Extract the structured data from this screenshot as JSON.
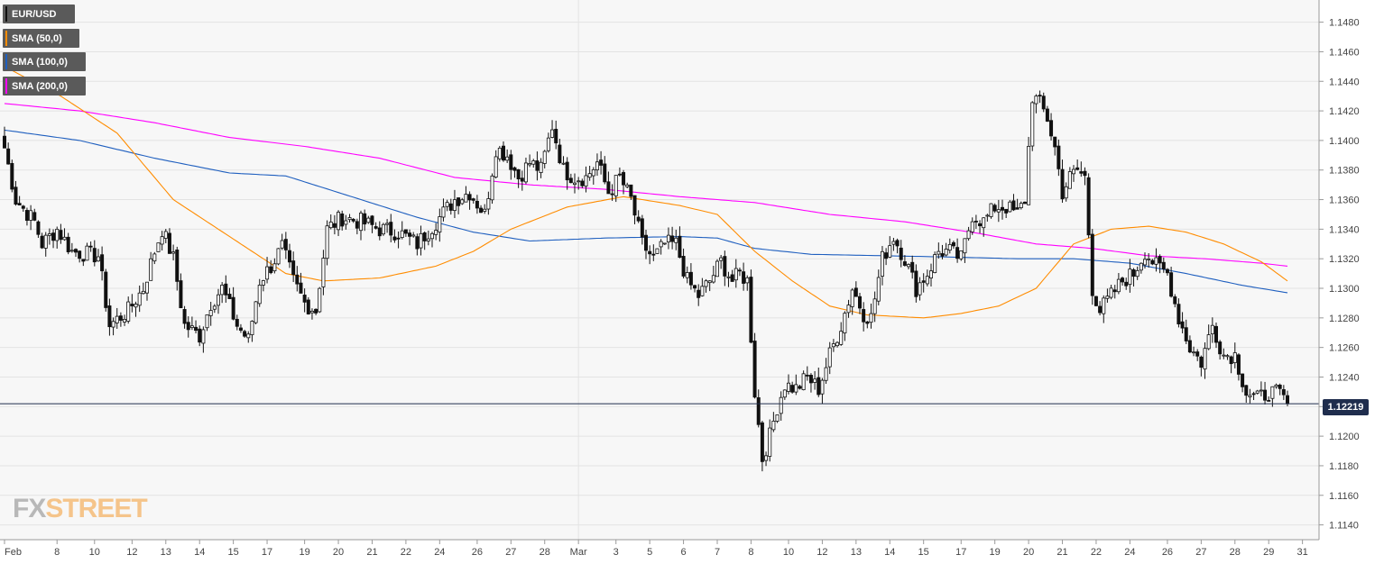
{
  "legend": [
    {
      "label": "EUR/USD",
      "color": "#111111"
    },
    {
      "label": "SMA (50,0)",
      "color": "#ff8c00"
    },
    {
      "label": "SMA (100,0)",
      "color": "#1f5fbf"
    },
    {
      "label": "SMA (200,0)",
      "color": "#ff00ff"
    }
  ],
  "price_tag": "1.12219",
  "logo": {
    "part1": "FX",
    "part2": "STREET"
  },
  "chart_data": {
    "type": "candlestick",
    "title": "",
    "ylim": [
      1.113,
      1.1495
    ],
    "grid": true,
    "y_ticks": [
      "1.1480",
      "1.1460",
      "1.1440",
      "1.1420",
      "1.1400",
      "1.1380",
      "1.1360",
      "1.1340",
      "1.1320",
      "1.1300",
      "1.1280",
      "1.1260",
      "1.1240",
      "1.1220",
      "1.1200",
      "1.1180",
      "1.1160",
      "1.1140"
    ],
    "x_ticks": [
      {
        "label": "Feb",
        "i": 0
      },
      {
        "label": "8",
        "i": 14
      },
      {
        "label": "10",
        "i": 24
      },
      {
        "label": "12",
        "i": 34
      },
      {
        "label": "13",
        "i": 43
      },
      {
        "label": "14",
        "i": 52
      },
      {
        "label": "15",
        "i": 61
      },
      {
        "label": "17",
        "i": 70
      },
      {
        "label": "19",
        "i": 80
      },
      {
        "label": "20",
        "i": 89
      },
      {
        "label": "21",
        "i": 98
      },
      {
        "label": "22",
        "i": 107
      },
      {
        "label": "24",
        "i": 116
      },
      {
        "label": "26",
        "i": 126
      },
      {
        "label": "27",
        "i": 135
      },
      {
        "label": "28",
        "i": 144
      },
      {
        "label": "Mar",
        "i": 153
      },
      {
        "label": "3",
        "i": 163
      },
      {
        "label": "5",
        "i": 172
      },
      {
        "label": "6",
        "i": 181
      },
      {
        "label": "7",
        "i": 190
      },
      {
        "label": "8",
        "i": 199
      },
      {
        "label": "10",
        "i": 209
      },
      {
        "label": "12",
        "i": 218
      },
      {
        "label": "13",
        "i": 227
      },
      {
        "label": "14",
        "i": 236
      },
      {
        "label": "15",
        "i": 245
      },
      {
        "label": "17",
        "i": 255
      },
      {
        "label": "19",
        "i": 264
      },
      {
        "label": "20",
        "i": 273
      },
      {
        "label": "21",
        "i": 282
      },
      {
        "label": "22",
        "i": 291
      },
      {
        "label": "24",
        "i": 300
      },
      {
        "label": "26",
        "i": 310
      },
      {
        "label": "27",
        "i": 319
      },
      {
        "label": "28",
        "i": 328
      },
      {
        "label": "29",
        "i": 337
      },
      {
        "label": "31",
        "i": 346
      }
    ],
    "close_anchors": [
      [
        0,
        1.1395
      ],
      [
        3,
        1.136
      ],
      [
        8,
        1.1345
      ],
      [
        10,
        1.133
      ],
      [
        14,
        1.134
      ],
      [
        18,
        1.1325
      ],
      [
        25,
        1.1322
      ],
      [
        28,
        1.1275
      ],
      [
        33,
        1.1285
      ],
      [
        37,
        1.13
      ],
      [
        40,
        1.1325
      ],
      [
        42,
        1.134
      ],
      [
        45,
        1.132
      ],
      [
        48,
        1.1275
      ],
      [
        52,
        1.1268
      ],
      [
        55,
        1.129
      ],
      [
        58,
        1.13
      ],
      [
        62,
        1.1275
      ],
      [
        65,
        1.1265
      ],
      [
        68,
        1.1305
      ],
      [
        71,
        1.1315
      ],
      [
        74,
        1.1328
      ],
      [
        77,
        1.1305
      ],
      [
        80,
        1.129
      ],
      [
        83,
        1.1285
      ],
      [
        86,
        1.134
      ],
      [
        90,
        1.1348
      ],
      [
        95,
        1.1345
      ],
      [
        100,
        1.134
      ],
      [
        105,
        1.1338
      ],
      [
        110,
        1.133
      ],
      [
        115,
        1.1345
      ],
      [
        120,
        1.136
      ],
      [
        124,
        1.1365
      ],
      [
        128,
        1.135
      ],
      [
        131,
        1.1395
      ],
      [
        134,
        1.139
      ],
      [
        137,
        1.1375
      ],
      [
        140,
        1.1385
      ],
      [
        143,
        1.138
      ],
      [
        146,
        1.141
      ],
      [
        149,
        1.138
      ],
      [
        152,
        1.1375
      ],
      [
        155,
        1.1375
      ],
      [
        158,
        1.1385
      ],
      [
        161,
        1.1365
      ],
      [
        164,
        1.1375
      ],
      [
        167,
        1.136
      ],
      [
        170,
        1.133
      ],
      [
        173,
        1.132
      ],
      [
        176,
        1.133
      ],
      [
        179,
        1.133
      ],
      [
        182,
        1.1305
      ],
      [
        185,
        1.1295
      ],
      [
        188,
        1.1305
      ],
      [
        191,
        1.1318
      ],
      [
        194,
        1.1305
      ],
      [
        196,
        1.131
      ],
      [
        198,
        1.1305
      ],
      [
        200,
        1.123
      ],
      [
        202,
        1.1185
      ],
      [
        204,
        1.12
      ],
      [
        206,
        1.122
      ],
      [
        208,
        1.1235
      ],
      [
        211,
        1.1232
      ],
      [
        214,
        1.124
      ],
      [
        217,
        1.1232
      ],
      [
        220,
        1.1255
      ],
      [
        223,
        1.1275
      ],
      [
        226,
        1.13
      ],
      [
        229,
        1.1283
      ],
      [
        231,
        1.128
      ],
      [
        234,
        1.132
      ],
      [
        237,
        1.1335
      ],
      [
        240,
        1.132
      ],
      [
        243,
        1.13
      ],
      [
        246,
        1.131
      ],
      [
        249,
        1.1325
      ],
      [
        252,
        1.1325
      ],
      [
        255,
        1.132
      ],
      [
        258,
        1.135
      ],
      [
        261,
        1.1345
      ],
      [
        264,
        1.1355
      ],
      [
        267,
        1.1355
      ],
      [
        270,
        1.135
      ],
      [
        272,
        1.136
      ],
      [
        274,
        1.143
      ],
      [
        276,
        1.1425
      ],
      [
        278,
        1.1415
      ],
      [
        280,
        1.1395
      ],
      [
        282,
        1.1365
      ],
      [
        284,
        1.1375
      ],
      [
        286,
        1.138
      ],
      [
        288,
        1.1375
      ],
      [
        290,
        1.13
      ],
      [
        292,
        1.1285
      ],
      [
        295,
        1.1295
      ],
      [
        298,
        1.1305
      ],
      [
        301,
        1.131
      ],
      [
        304,
        1.1325
      ],
      [
        307,
        1.1315
      ],
      [
        310,
        1.131
      ],
      [
        313,
        1.128
      ],
      [
        316,
        1.126
      ],
      [
        319,
        1.125
      ],
      [
        322,
        1.1275
      ],
      [
        325,
        1.1255
      ],
      [
        328,
        1.1255
      ],
      [
        331,
        1.123
      ],
      [
        334,
        1.1225
      ],
      [
        337,
        1.123
      ],
      [
        340,
        1.1228
      ],
      [
        342,
        1.1222
      ]
    ],
    "sma50_anchors": [
      [
        0,
        1.145
      ],
      [
        15,
        1.143
      ],
      [
        30,
        1.1405
      ],
      [
        45,
        1.136
      ],
      [
        60,
        1.1335
      ],
      [
        75,
        1.131
      ],
      [
        85,
        1.1305
      ],
      [
        100,
        1.1307
      ],
      [
        115,
        1.1315
      ],
      [
        125,
        1.1325
      ],
      [
        135,
        1.134
      ],
      [
        150,
        1.1355
      ],
      [
        165,
        1.1362
      ],
      [
        180,
        1.1356
      ],
      [
        190,
        1.135
      ],
      [
        200,
        1.1325
      ],
      [
        210,
        1.1305
      ],
      [
        220,
        1.1288
      ],
      [
        230,
        1.1282
      ],
      [
        245,
        1.128
      ],
      [
        255,
        1.1283
      ],
      [
        265,
        1.1288
      ],
      [
        275,
        1.13
      ],
      [
        285,
        1.133
      ],
      [
        295,
        1.134
      ],
      [
        305,
        1.1342
      ],
      [
        315,
        1.1338
      ],
      [
        325,
        1.133
      ],
      [
        335,
        1.1318
      ],
      [
        342,
        1.1305
      ]
    ],
    "sma100_anchors": [
      [
        0,
        1.1407
      ],
      [
        20,
        1.14
      ],
      [
        40,
        1.1388
      ],
      [
        60,
        1.1378
      ],
      [
        75,
        1.1376
      ],
      [
        95,
        1.136
      ],
      [
        110,
        1.1348
      ],
      [
        125,
        1.1338
      ],
      [
        140,
        1.1332
      ],
      [
        160,
        1.1334
      ],
      [
        180,
        1.1335
      ],
      [
        190,
        1.1334
      ],
      [
        200,
        1.1327
      ],
      [
        215,
        1.1323
      ],
      [
        235,
        1.1322
      ],
      [
        255,
        1.1321
      ],
      [
        270,
        1.132
      ],
      [
        285,
        1.132
      ],
      [
        300,
        1.1317
      ],
      [
        315,
        1.131
      ],
      [
        330,
        1.1302
      ],
      [
        342,
        1.1297
      ]
    ],
    "sma200_anchors": [
      [
        0,
        1.1425
      ],
      [
        20,
        1.142
      ],
      [
        40,
        1.1412
      ],
      [
        60,
        1.1402
      ],
      [
        80,
        1.1396
      ],
      [
        100,
        1.1388
      ],
      [
        120,
        1.1375
      ],
      [
        140,
        1.137
      ],
      [
        160,
        1.1367
      ],
      [
        180,
        1.1362
      ],
      [
        200,
        1.1358
      ],
      [
        220,
        1.135
      ],
      [
        240,
        1.1345
      ],
      [
        260,
        1.1337
      ],
      [
        275,
        1.133
      ],
      [
        290,
        1.1327
      ],
      [
        305,
        1.1322
      ],
      [
        320,
        1.132
      ],
      [
        335,
        1.1317
      ],
      [
        342,
        1.1315
      ]
    ],
    "last_price": 1.12219
  }
}
